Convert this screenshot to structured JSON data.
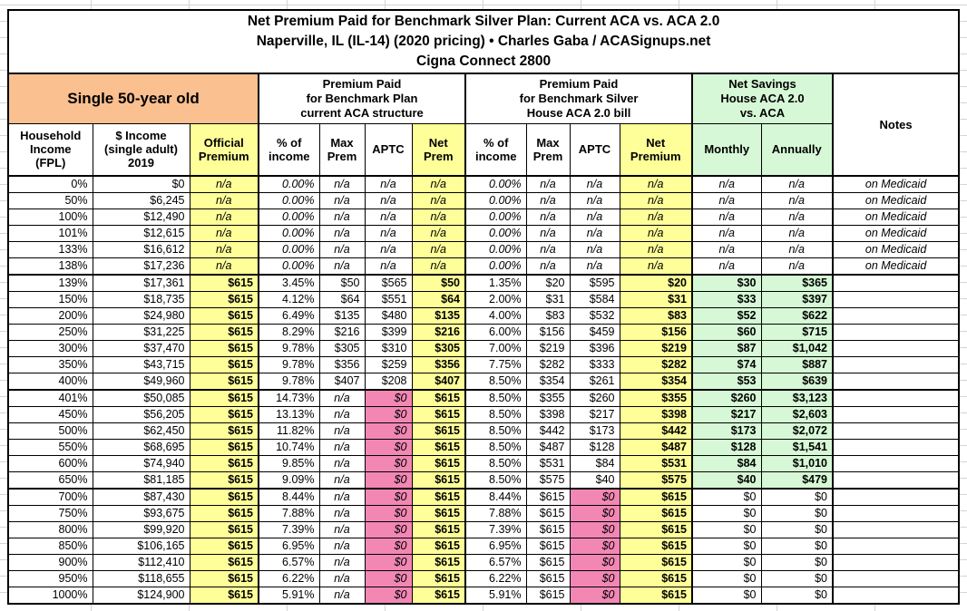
{
  "chart_data": {
    "type": "table",
    "title": "Net Premium Paid for Benchmark Silver Plan: Current ACA vs. ACA 2.0",
    "subtitle": "Naperville, IL (IL-14) (2020 pricing) • Charles Gaba / ACASignups.net",
    "plan_name": "Cigna Connect 2800",
    "groups": {
      "subject": "Single 50-year old",
      "current_aca": "Premium Paid\nfor Benchmark Plan\ncurrent ACA structure",
      "house_aca20": "Premium Paid\nfor Benchmark Silver\nHouse ACA 2.0 bill",
      "net_savings": "Net Savings\nHouse ACA 2.0\nvs. ACA",
      "notes": "Notes"
    },
    "columns": {
      "fpl": "Household\nIncome\n(FPL)",
      "income": "$ Income\n(single adult)\n2019",
      "official": "Official\nPremium",
      "pct_income": "% of\nincome",
      "max_prem": "Max\nPrem",
      "aptc": "APTC",
      "net_prem": "Net\nPrem",
      "net_premium": "Net\nPremium",
      "monthly": "Monthly",
      "annually": "Annually"
    },
    "colors": {
      "highlight_yellow": "#FFFF99",
      "savings_green": "#D6F8D6",
      "zero_aptc_pink": "#F287B4",
      "subject_orange": "#FAC090"
    },
    "rows": [
      {
        "fpl": "0%",
        "income": "$0",
        "official": "n/a",
        "aca_pct": "0.00%",
        "aca_max": "n/a",
        "aca_aptc": "n/a",
        "aca_net": "n/a",
        "h2_pct": "0.00%",
        "h2_max": "n/a",
        "h2_aptc": "n/a",
        "h2_net": "n/a",
        "sav_mo": "n/a",
        "sav_yr": "n/a",
        "note": "on Medicaid",
        "band": "medicaid"
      },
      {
        "fpl": "50%",
        "income": "$6,245",
        "official": "n/a",
        "aca_pct": "0.00%",
        "aca_max": "n/a",
        "aca_aptc": "n/a",
        "aca_net": "n/a",
        "h2_pct": "0.00%",
        "h2_max": "n/a",
        "h2_aptc": "n/a",
        "h2_net": "n/a",
        "sav_mo": "n/a",
        "sav_yr": "n/a",
        "note": "on Medicaid",
        "band": "medicaid"
      },
      {
        "fpl": "100%",
        "income": "$12,490",
        "official": "n/a",
        "aca_pct": "0.00%",
        "aca_max": "n/a",
        "aca_aptc": "n/a",
        "aca_net": "n/a",
        "h2_pct": "0.00%",
        "h2_max": "n/a",
        "h2_aptc": "n/a",
        "h2_net": "n/a",
        "sav_mo": "n/a",
        "sav_yr": "n/a",
        "note": "on Medicaid",
        "band": "medicaid"
      },
      {
        "fpl": "101%",
        "income": "$12,615",
        "official": "n/a",
        "aca_pct": "0.00%",
        "aca_max": "n/a",
        "aca_aptc": "n/a",
        "aca_net": "n/a",
        "h2_pct": "0.00%",
        "h2_max": "n/a",
        "h2_aptc": "n/a",
        "h2_net": "n/a",
        "sav_mo": "n/a",
        "sav_yr": "n/a",
        "note": "on Medicaid",
        "band": "medicaid"
      },
      {
        "fpl": "133%",
        "income": "$16,612",
        "official": "n/a",
        "aca_pct": "0.00%",
        "aca_max": "n/a",
        "aca_aptc": "n/a",
        "aca_net": "n/a",
        "h2_pct": "0.00%",
        "h2_max": "n/a",
        "h2_aptc": "n/a",
        "h2_net": "n/a",
        "sav_mo": "n/a",
        "sav_yr": "n/a",
        "note": "on Medicaid",
        "band": "medicaid"
      },
      {
        "fpl": "138%",
        "income": "$17,236",
        "official": "n/a",
        "aca_pct": "0.00%",
        "aca_max": "n/a",
        "aca_aptc": "n/a",
        "aca_net": "n/a",
        "h2_pct": "0.00%",
        "h2_max": "n/a",
        "h2_aptc": "n/a",
        "h2_net": "n/a",
        "sav_mo": "n/a",
        "sav_yr": "n/a",
        "note": "on Medicaid",
        "band": "medicaid"
      },
      {
        "fpl": "139%",
        "income": "$17,361",
        "official": "$615",
        "aca_pct": "3.45%",
        "aca_max": "$50",
        "aca_aptc": "$565",
        "aca_net": "$50",
        "h2_pct": "1.35%",
        "h2_max": "$20",
        "h2_aptc": "$595",
        "h2_net": "$20",
        "sav_mo": "$30",
        "sav_yr": "$365",
        "note": "",
        "band": "subsidy",
        "sep": true
      },
      {
        "fpl": "150%",
        "income": "$18,735",
        "official": "$615",
        "aca_pct": "4.12%",
        "aca_max": "$64",
        "aca_aptc": "$551",
        "aca_net": "$64",
        "h2_pct": "2.00%",
        "h2_max": "$31",
        "h2_aptc": "$584",
        "h2_net": "$31",
        "sav_mo": "$33",
        "sav_yr": "$397",
        "note": "",
        "band": "subsidy"
      },
      {
        "fpl": "200%",
        "income": "$24,980",
        "official": "$615",
        "aca_pct": "6.49%",
        "aca_max": "$135",
        "aca_aptc": "$480",
        "aca_net": "$135",
        "h2_pct": "4.00%",
        "h2_max": "$83",
        "h2_aptc": "$532",
        "h2_net": "$83",
        "sav_mo": "$52",
        "sav_yr": "$622",
        "note": "",
        "band": "subsidy"
      },
      {
        "fpl": "250%",
        "income": "$31,225",
        "official": "$615",
        "aca_pct": "8.29%",
        "aca_max": "$216",
        "aca_aptc": "$399",
        "aca_net": "$216",
        "h2_pct": "6.00%",
        "h2_max": "$156",
        "h2_aptc": "$459",
        "h2_net": "$156",
        "sav_mo": "$60",
        "sav_yr": "$715",
        "note": "",
        "band": "subsidy"
      },
      {
        "fpl": "300%",
        "income": "$37,470",
        "official": "$615",
        "aca_pct": "9.78%",
        "aca_max": "$305",
        "aca_aptc": "$310",
        "aca_net": "$305",
        "h2_pct": "7.00%",
        "h2_max": "$219",
        "h2_aptc": "$396",
        "h2_net": "$219",
        "sav_mo": "$87",
        "sav_yr": "$1,042",
        "note": "",
        "band": "subsidy"
      },
      {
        "fpl": "350%",
        "income": "$43,715",
        "official": "$615",
        "aca_pct": "9.78%",
        "aca_max": "$356",
        "aca_aptc": "$259",
        "aca_net": "$356",
        "h2_pct": "7.75%",
        "h2_max": "$282",
        "h2_aptc": "$333",
        "h2_net": "$282",
        "sav_mo": "$74",
        "sav_yr": "$887",
        "note": "",
        "band": "subsidy"
      },
      {
        "fpl": "400%",
        "income": "$49,960",
        "official": "$615",
        "aca_pct": "9.78%",
        "aca_max": "$407",
        "aca_aptc": "$208",
        "aca_net": "$407",
        "h2_pct": "8.50%",
        "h2_max": "$354",
        "h2_aptc": "$261",
        "h2_net": "$354",
        "sav_mo": "$53",
        "sav_yr": "$639",
        "note": "",
        "band": "subsidy"
      },
      {
        "fpl": "401%",
        "income": "$50,085",
        "official": "$615",
        "aca_pct": "14.73%",
        "aca_max": "n/a",
        "aca_aptc": "$0",
        "aca_net": "$615",
        "h2_pct": "8.50%",
        "h2_max": "$355",
        "h2_aptc": "$260",
        "h2_net": "$355",
        "sav_mo": "$260",
        "sav_yr": "$3,123",
        "note": "",
        "band": "cliff",
        "sep": true
      },
      {
        "fpl": "450%",
        "income": "$56,205",
        "official": "$615",
        "aca_pct": "13.13%",
        "aca_max": "n/a",
        "aca_aptc": "$0",
        "aca_net": "$615",
        "h2_pct": "8.50%",
        "h2_max": "$398",
        "h2_aptc": "$217",
        "h2_net": "$398",
        "sav_mo": "$217",
        "sav_yr": "$2,603",
        "note": "",
        "band": "cliff"
      },
      {
        "fpl": "500%",
        "income": "$62,450",
        "official": "$615",
        "aca_pct": "11.82%",
        "aca_max": "n/a",
        "aca_aptc": "$0",
        "aca_net": "$615",
        "h2_pct": "8.50%",
        "h2_max": "$442",
        "h2_aptc": "$173",
        "h2_net": "$442",
        "sav_mo": "$173",
        "sav_yr": "$2,072",
        "note": "",
        "band": "cliff"
      },
      {
        "fpl": "550%",
        "income": "$68,695",
        "official": "$615",
        "aca_pct": "10.74%",
        "aca_max": "n/a",
        "aca_aptc": "$0",
        "aca_net": "$615",
        "h2_pct": "8.50%",
        "h2_max": "$487",
        "h2_aptc": "$128",
        "h2_net": "$487",
        "sav_mo": "$128",
        "sav_yr": "$1,541",
        "note": "",
        "band": "cliff"
      },
      {
        "fpl": "600%",
        "income": "$74,940",
        "official": "$615",
        "aca_pct": "9.85%",
        "aca_max": "n/a",
        "aca_aptc": "$0",
        "aca_net": "$615",
        "h2_pct": "8.50%",
        "h2_max": "$531",
        "h2_aptc": "$84",
        "h2_net": "$531",
        "sav_mo": "$84",
        "sav_yr": "$1,010",
        "note": "",
        "band": "cliff"
      },
      {
        "fpl": "650%",
        "income": "$81,185",
        "official": "$615",
        "aca_pct": "9.09%",
        "aca_max": "n/a",
        "aca_aptc": "$0",
        "aca_net": "$615",
        "h2_pct": "8.50%",
        "h2_max": "$575",
        "h2_aptc": "$40",
        "h2_net": "$575",
        "sav_mo": "$40",
        "sav_yr": "$479",
        "note": "",
        "band": "cliff"
      },
      {
        "fpl": "700%",
        "income": "$87,430",
        "official": "$615",
        "aca_pct": "8.44%",
        "aca_max": "n/a",
        "aca_aptc": "$0",
        "aca_net": "$615",
        "h2_pct": "8.44%",
        "h2_max": "$615",
        "h2_aptc": "$0",
        "h2_net": "$615",
        "sav_mo": "$0",
        "sav_yr": "$0",
        "note": "",
        "band": "over",
        "sep": true
      },
      {
        "fpl": "750%",
        "income": "$93,675",
        "official": "$615",
        "aca_pct": "7.88%",
        "aca_max": "n/a",
        "aca_aptc": "$0",
        "aca_net": "$615",
        "h2_pct": "7.88%",
        "h2_max": "$615",
        "h2_aptc": "$0",
        "h2_net": "$615",
        "sav_mo": "$0",
        "sav_yr": "$0",
        "note": "",
        "band": "over"
      },
      {
        "fpl": "800%",
        "income": "$99,920",
        "official": "$615",
        "aca_pct": "7.39%",
        "aca_max": "n/a",
        "aca_aptc": "$0",
        "aca_net": "$615",
        "h2_pct": "7.39%",
        "h2_max": "$615",
        "h2_aptc": "$0",
        "h2_net": "$615",
        "sav_mo": "$0",
        "sav_yr": "$0",
        "note": "",
        "band": "over"
      },
      {
        "fpl": "850%",
        "income": "$106,165",
        "official": "$615",
        "aca_pct": "6.95%",
        "aca_max": "n/a",
        "aca_aptc": "$0",
        "aca_net": "$615",
        "h2_pct": "6.95%",
        "h2_max": "$615",
        "h2_aptc": "$0",
        "h2_net": "$615",
        "sav_mo": "$0",
        "sav_yr": "$0",
        "note": "",
        "band": "over"
      },
      {
        "fpl": "900%",
        "income": "$112,410",
        "official": "$615",
        "aca_pct": "6.57%",
        "aca_max": "n/a",
        "aca_aptc": "$0",
        "aca_net": "$615",
        "h2_pct": "6.57%",
        "h2_max": "$615",
        "h2_aptc": "$0",
        "h2_net": "$615",
        "sav_mo": "$0",
        "sav_yr": "$0",
        "note": "",
        "band": "over"
      },
      {
        "fpl": "950%",
        "income": "$118,655",
        "official": "$615",
        "aca_pct": "6.22%",
        "aca_max": "n/a",
        "aca_aptc": "$0",
        "aca_net": "$615",
        "h2_pct": "6.22%",
        "h2_max": "$615",
        "h2_aptc": "$0",
        "h2_net": "$615",
        "sav_mo": "$0",
        "sav_yr": "$0",
        "note": "",
        "band": "over"
      },
      {
        "fpl": "1000%",
        "income": "$124,900",
        "official": "$615",
        "aca_pct": "5.91%",
        "aca_max": "n/a",
        "aca_aptc": "$0",
        "aca_net": "$615",
        "h2_pct": "5.91%",
        "h2_max": "$615",
        "h2_aptc": "$0",
        "h2_net": "$615",
        "sav_mo": "$0",
        "sav_yr": "$0",
        "note": "",
        "band": "over"
      }
    ]
  }
}
